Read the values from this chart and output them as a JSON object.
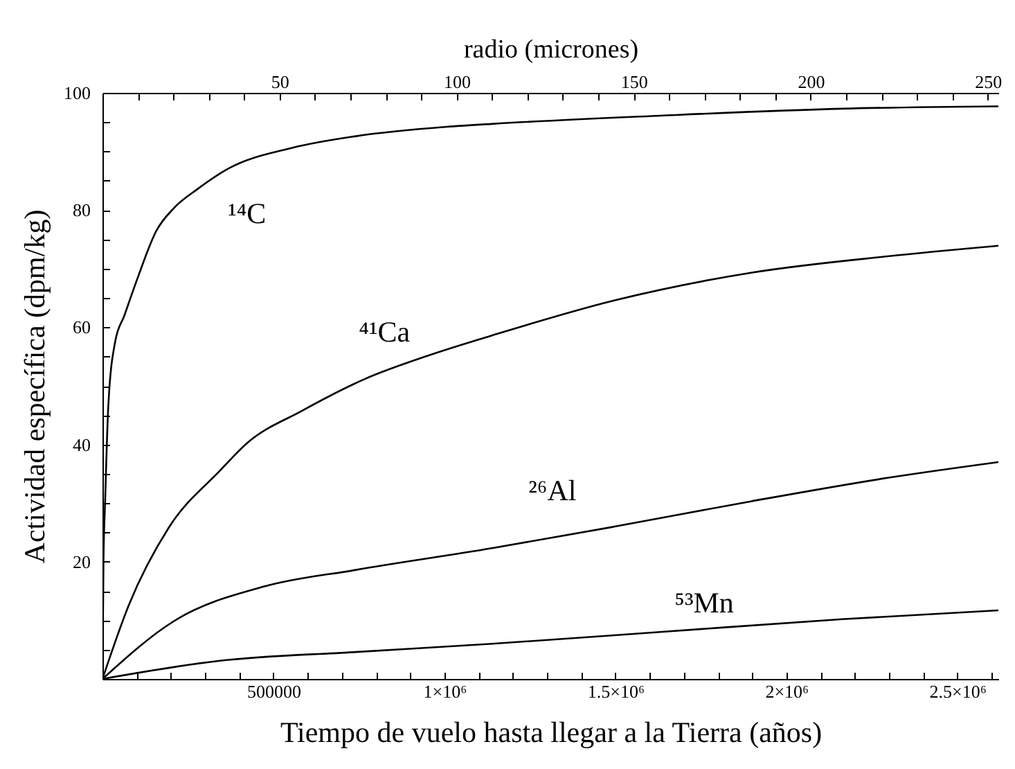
{
  "chart_data": {
    "type": "line",
    "xlabel": "Tiempo de vuelo hasta llegar a la Tierra (años)",
    "ylabel": "Actividad específica (dpm/kg)",
    "x2label": "radio (micrones)",
    "xlim": [
      0,
      2620000
    ],
    "ylim": [
      0,
      100
    ],
    "x2lim": [
      0,
      253
    ],
    "xticks": [
      {
        "value": 100000,
        "label": null
      },
      {
        "value": 200000,
        "label": null
      },
      {
        "value": 300000,
        "label": null
      },
      {
        "value": 400000,
        "label": null
      },
      500000,
      {
        "value": 600000,
        "label": null
      },
      {
        "value": 700000,
        "label": null
      },
      {
        "value": 800000,
        "label": null
      },
      {
        "value": 900000,
        "label": null
      },
      {
        "value": 1000000,
        "label": "1×10⁶"
      },
      {
        "value": 1100000,
        "label": null
      },
      {
        "value": 1200000,
        "label": null
      },
      {
        "value": 1300000,
        "label": null
      },
      {
        "value": 1400000,
        "label": null
      },
      {
        "value": 1500000,
        "label": "1.5×10⁶"
      },
      {
        "value": 1600000,
        "label": null
      },
      {
        "value": 1700000,
        "label": null
      },
      {
        "value": 1800000,
        "label": null
      },
      {
        "value": 1900000,
        "label": null
      },
      {
        "value": 2000000,
        "label": "2×10⁶"
      },
      {
        "value": 2100000,
        "label": null
      },
      {
        "value": 2200000,
        "label": null
      },
      {
        "value": 2300000,
        "label": null
      },
      {
        "value": 2400000,
        "label": null
      },
      {
        "value": 2500000,
        "label": "2.5×10⁶"
      },
      {
        "value": 2600000,
        "label": null
      }
    ],
    "yticks": [
      {
        "value": 5,
        "label": null
      },
      {
        "value": 10,
        "label": null
      },
      {
        "value": 15,
        "label": null
      },
      20,
      {
        "value": 25,
        "label": null
      },
      {
        "value": 30,
        "label": null
      },
      {
        "value": 35,
        "label": null
      },
      40,
      {
        "value": 45,
        "label": null
      },
      {
        "value": 50,
        "label": null
      },
      {
        "value": 55,
        "label": null
      },
      60,
      {
        "value": 65,
        "label": null
      },
      {
        "value": 70,
        "label": null
      },
      {
        "value": 75,
        "label": null
      },
      80,
      {
        "value": 85,
        "label": null
      },
      {
        "value": 90,
        "label": null
      },
      {
        "value": 95,
        "label": null
      },
      100
    ],
    "x2ticks": [
      {
        "value": 10,
        "label": null
      },
      {
        "value": 20,
        "label": null
      },
      {
        "value": 30,
        "label": null
      },
      {
        "value": 40,
        "label": null
      },
      50,
      {
        "value": 60,
        "label": null
      },
      {
        "value": 70,
        "label": null
      },
      {
        "value": 80,
        "label": null
      },
      {
        "value": 90,
        "label": null
      },
      100,
      {
        "value": 110,
        "label": null
      },
      {
        "value": 120,
        "label": null
      },
      {
        "value": 130,
        "label": null
      },
      {
        "value": 140,
        "label": null
      },
      150,
      {
        "value": 160,
        "label": null
      },
      {
        "value": 170,
        "label": null
      },
      {
        "value": 180,
        "label": null
      },
      {
        "value": 190,
        "label": null
      },
      200,
      {
        "value": 210,
        "label": null
      },
      {
        "value": 220,
        "label": null
      },
      {
        "value": 230,
        "label": null
      },
      {
        "value": 240,
        "label": null
      },
      250
    ],
    "series": [
      {
        "name": "¹⁴C",
        "color": "#000000",
        "x": [
          0,
          3000,
          8000,
          17000,
          37000,
          64000,
          104000,
          157000,
          210000,
          276000,
          366000,
          554000,
          741000,
          1007000,
          1139000,
          1630000,
          2163000,
          2620000
        ],
        "values": [
          0,
          20,
          30.7,
          46.5,
          57.5,
          62,
          68.6,
          76.4,
          80.4,
          83.5,
          87,
          90.6,
          92.6,
          94.2,
          94.7,
          96.1,
          97.3,
          97.7
        ]
      },
      {
        "name": "⁴¹Ca",
        "color": "#000000",
        "x": [
          0,
          77000,
          196000,
          343000,
          422000,
          582000,
          768000,
          954000,
          1139000,
          1498000,
          1896000,
          2295000,
          2620000
        ],
        "values": [
          0,
          12.6,
          26,
          35.5,
          40.2,
          45.7,
          51.2,
          55.2,
          58.6,
          64.6,
          69.3,
          72.1,
          73.9
        ]
      },
      {
        "name": "²⁶Al",
        "color": "#000000",
        "x": [
          0,
          210000,
          475000,
          741000,
          1139000,
          1498000,
          1896000,
          2295000,
          2620000
        ],
        "values": [
          0,
          9.9,
          15.8,
          18.6,
          22.3,
          26,
          30.3,
          34.3,
          37
        ]
      },
      {
        "name": "⁵³Mn",
        "color": "#000000",
        "x": [
          0,
          343000,
          741000,
          1139000,
          1630000,
          2163000,
          2620000
        ],
        "values": [
          0,
          3.1,
          4.6,
          6,
          8,
          10.2,
          11.7
        ]
      }
    ]
  }
}
